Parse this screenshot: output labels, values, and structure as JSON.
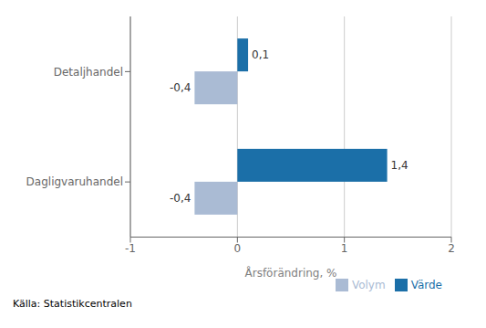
{
  "chart_data": {
    "type": "bar",
    "orientation": "horizontal",
    "categories": [
      "Dagligvaruhandel",
      "Detaljhandel"
    ],
    "series": [
      {
        "name": "Värde",
        "color": "#1B6FA8",
        "values": [
          1.4,
          0.1
        ],
        "value_labels": [
          "1,4",
          "0,1"
        ]
      },
      {
        "name": "Volym",
        "color": "#AABBD4",
        "values": [
          -0.4,
          -0.4
        ],
        "value_labels": [
          "-0,4",
          "-0,4"
        ]
      }
    ],
    "xlabel": "Årsförändring, %",
    "xlim": [
      -1,
      2
    ],
    "xticks": [
      -1,
      0,
      1,
      2
    ],
    "grid": true,
    "legend": "lower right",
    "data_labels": true,
    "source": "Källa: Statistikcentralen"
  }
}
